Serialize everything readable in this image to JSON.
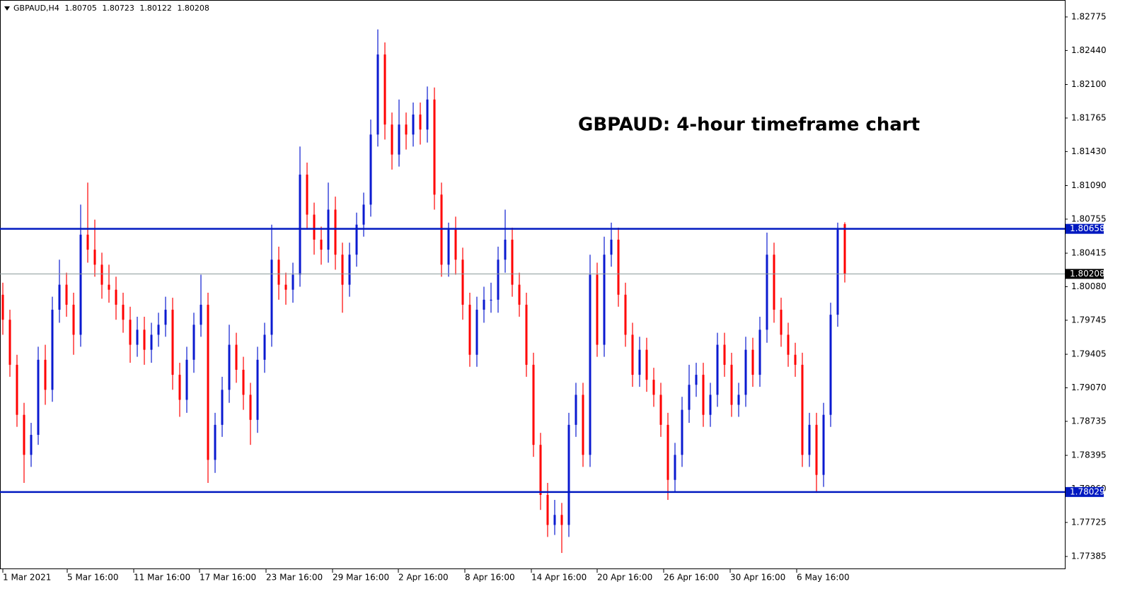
{
  "chart_data": {
    "type": "candlestick",
    "symbol": "GBPAUD,H4",
    "title": "GBPAUD: 4-hour timeframe chart",
    "up_color": "#0a1ad0",
    "down_color": "#ff0000",
    "level_color": "#0019c0",
    "levels": [
      1.80658,
      1.78029
    ],
    "ylim": [
      1.77258,
      1.82916
    ],
    "yticks": [
      1.82775,
      {
        "value": 1.8244,
        "label": "1.82440"
      },
      {
        "value": 1.821,
        "label": "1.82100"
      },
      1.81765,
      {
        "value": 1.8143,
        "label": "1.81430"
      },
      {
        "value": 1.8109,
        "label": "1.81090"
      },
      1.80755,
      1.80415,
      {
        "value": 1.8008,
        "label": "1.80080"
      },
      1.79745,
      1.79405,
      {
        "value": 1.7907,
        "label": "1.79070"
      },
      1.78735,
      1.78395,
      {
        "value": 1.7806,
        "label": "1.78060"
      },
      1.77725,
      1.77385
    ],
    "xticks": [
      {
        "value": 0,
        "label": "1 Mar 2021"
      },
      {
        "value": 9.1,
        "label": "5 Mar 16:00"
      },
      {
        "value": 18.5,
        "label": "11 Mar 16:00"
      },
      {
        "value": 27.8,
        "label": "17 Mar 16:00"
      },
      {
        "value": 37.2,
        "label": "23 Mar 16:00"
      },
      {
        "value": 46.6,
        "label": "29 Mar 16:00"
      },
      {
        "value": 55.9,
        "label": "2 Apr 16:00"
      },
      {
        "value": 65.3,
        "label": "8 Apr 16:00"
      },
      {
        "value": 74.7,
        "label": "14 Apr 16:00"
      },
      {
        "value": 84,
        "label": "20 Apr 16:00"
      },
      {
        "value": 93.4,
        "label": "26 Apr 16:00"
      },
      {
        "value": 102.8,
        "label": "30 Apr 16:00"
      },
      {
        "value": 112.2,
        "label": "6 May 16:00"
      }
    ],
    "ohlc": [
      [
        1.8,
        1.8012,
        1.796,
        1.7975
      ],
      [
        1.7975,
        1.7985,
        1.7918,
        1.793
      ],
      [
        1.793,
        1.794,
        1.7868,
        1.788
      ],
      [
        1.788,
        1.7892,
        1.7812,
        1.784
      ],
      [
        1.784,
        1.7872,
        1.7828,
        1.786
      ],
      [
        1.786,
        1.7948,
        1.785,
        1.7935
      ],
      [
        1.7935,
        1.795,
        1.789,
        1.7905
      ],
      [
        1.7905,
        1.7998,
        1.7893,
        1.7985
      ],
      [
        1.7985,
        1.8035,
        1.7972,
        1.801
      ],
      [
        1.801,
        1.8022,
        1.7978,
        1.799
      ],
      [
        1.799,
        1.8002,
        1.794,
        1.796
      ],
      [
        1.796,
        1.809,
        1.7948,
        1.806
      ],
      [
        1.806,
        1.8112,
        1.8032,
        1.8045
      ],
      [
        1.8045,
        1.8075,
        1.8018,
        1.803
      ],
      [
        1.803,
        1.8042,
        1.7996,
        1.801
      ],
      [
        1.801,
        1.803,
        1.7992,
        1.8005
      ],
      [
        1.8005,
        1.8018,
        1.7975,
        1.799
      ],
      [
        1.799,
        1.8002,
        1.7962,
        1.7975
      ],
      [
        1.7975,
        1.7988,
        1.7932,
        1.795
      ],
      [
        1.795,
        1.7978,
        1.7938,
        1.7965
      ],
      [
        1.7965,
        1.7978,
        1.793,
        1.7945
      ],
      [
        1.7945,
        1.7972,
        1.7932,
        1.796
      ],
      [
        1.796,
        1.7982,
        1.7948,
        1.797
      ],
      [
        1.797,
        1.7998,
        1.7958,
        1.7985
      ],
      [
        1.7985,
        1.7997,
        1.7905,
        1.792
      ],
      [
        1.792,
        1.7932,
        1.7878,
        1.7895
      ],
      [
        1.7895,
        1.7948,
        1.7882,
        1.7935
      ],
      [
        1.7935,
        1.7982,
        1.7922,
        1.797
      ],
      [
        1.797,
        1.802,
        1.7958,
        1.799
      ],
      [
        1.799,
        1.8002,
        1.7812,
        1.7835
      ],
      [
        1.7835,
        1.7882,
        1.7822,
        1.787
      ],
      [
        1.787,
        1.7918,
        1.7858,
        1.7905
      ],
      [
        1.7905,
        1.797,
        1.7892,
        1.795
      ],
      [
        1.795,
        1.7962,
        1.7912,
        1.7925
      ],
      [
        1.7925,
        1.7938,
        1.7885,
        1.79
      ],
      [
        1.79,
        1.7912,
        1.785,
        1.7875
      ],
      [
        1.7875,
        1.7948,
        1.7862,
        1.7935
      ],
      [
        1.7935,
        1.7972,
        1.7922,
        1.796
      ],
      [
        1.796,
        1.807,
        1.7948,
        1.8035
      ],
      [
        1.8035,
        1.8048,
        1.7995,
        1.801
      ],
      [
        1.801,
        1.8022,
        1.799,
        1.8005
      ],
      [
        1.8005,
        1.8032,
        1.7992,
        1.802
      ],
      [
        1.802,
        1.8148,
        1.8008,
        1.812
      ],
      [
        1.812,
        1.8132,
        1.8065,
        1.808
      ],
      [
        1.808,
        1.8092,
        1.804,
        1.8055
      ],
      [
        1.8055,
        1.8068,
        1.803,
        1.8045
      ],
      [
        1.8045,
        1.8112,
        1.8032,
        1.8085
      ],
      [
        1.8085,
        1.8098,
        1.8025,
        1.804
      ],
      [
        1.804,
        1.8052,
        1.7982,
        1.801
      ],
      [
        1.801,
        1.8052,
        1.7998,
        1.804
      ],
      [
        1.804,
        1.8082,
        1.8028,
        1.807
      ],
      [
        1.807,
        1.8102,
        1.8058,
        1.809
      ],
      [
        1.809,
        1.8175,
        1.8078,
        1.816
      ],
      [
        1.816,
        1.8265,
        1.8148,
        1.824
      ],
      [
        1.824,
        1.8252,
        1.8155,
        1.817
      ],
      [
        1.817,
        1.8182,
        1.8125,
        1.814
      ],
      [
        1.814,
        1.8195,
        1.8128,
        1.817
      ],
      [
        1.817,
        1.8182,
        1.8145,
        1.816
      ],
      [
        1.816,
        1.8192,
        1.8148,
        1.818
      ],
      [
        1.818,
        1.8192,
        1.815,
        1.8165
      ],
      [
        1.8165,
        1.8208,
        1.8152,
        1.8195
      ],
      [
        1.8195,
        1.8207,
        1.8085,
        1.81
      ],
      [
        1.81,
        1.8112,
        1.8018,
        1.803
      ],
      [
        1.803,
        1.8072,
        1.8018,
        1.8065
      ],
      [
        1.8065,
        1.8078,
        1.802,
        1.8035
      ],
      [
        1.8035,
        1.8047,
        1.7975,
        1.799
      ],
      [
        1.799,
        1.8002,
        1.7928,
        1.794
      ],
      [
        1.794,
        1.7998,
        1.7928,
        1.7985
      ],
      [
        1.7985,
        1.8008,
        1.7972,
        1.7995
      ],
      [
        1.7995,
        1.8012,
        1.7982,
        1.7995
      ],
      [
        1.7995,
        1.8048,
        1.7982,
        1.8035
      ],
      [
        1.8035,
        1.8085,
        1.8022,
        1.8055
      ],
      [
        1.8055,
        1.8067,
        1.7998,
        1.801
      ],
      [
        1.801,
        1.8022,
        1.7978,
        1.799
      ],
      [
        1.799,
        1.8002,
        1.7918,
        1.793
      ],
      [
        1.793,
        1.7942,
        1.7838,
        1.785
      ],
      [
        1.785,
        1.7862,
        1.7785,
        1.78
      ],
      [
        1.78,
        1.7812,
        1.7758,
        1.777
      ],
      [
        1.777,
        1.7795,
        1.776,
        1.778
      ],
      [
        1.778,
        1.7792,
        1.7742,
        1.777
      ],
      [
        1.777,
        1.7882,
        1.7758,
        1.787
      ],
      [
        1.787,
        1.7912,
        1.7858,
        1.79
      ],
      [
        1.79,
        1.7912,
        1.7828,
        1.784
      ],
      [
        1.784,
        1.804,
        1.7828,
        1.802
      ],
      [
        1.802,
        1.8032,
        1.7938,
        1.795
      ],
      [
        1.795,
        1.8058,
        1.7938,
        1.804
      ],
      [
        1.804,
        1.8072,
        1.8028,
        1.8055
      ],
      [
        1.8055,
        1.8067,
        1.7988,
        1.8
      ],
      [
        1.8,
        1.8012,
        1.7948,
        1.796
      ],
      [
        1.796,
        1.7972,
        1.7908,
        1.792
      ],
      [
        1.792,
        1.7958,
        1.7908,
        1.7945
      ],
      [
        1.7945,
        1.7957,
        1.7903,
        1.7915
      ],
      [
        1.7915,
        1.7927,
        1.7888,
        1.79
      ],
      [
        1.79,
        1.7912,
        1.7858,
        1.787
      ],
      [
        1.787,
        1.7882,
        1.7795,
        1.7815
      ],
      [
        1.7815,
        1.7852,
        1.7803,
        1.784
      ],
      [
        1.784,
        1.7898,
        1.7828,
        1.7885
      ],
      [
        1.7885,
        1.793,
        1.7872,
        1.791
      ],
      [
        1.791,
        1.7932,
        1.7898,
        1.792
      ],
      [
        1.792,
        1.7932,
        1.7868,
        1.788
      ],
      [
        1.788,
        1.7912,
        1.7868,
        1.79
      ],
      [
        1.79,
        1.7962,
        1.7888,
        1.795
      ],
      [
        1.795,
        1.7962,
        1.7918,
        1.793
      ],
      [
        1.793,
        1.7942,
        1.7878,
        1.789
      ],
      [
        1.789,
        1.7912,
        1.7878,
        1.79
      ],
      [
        1.79,
        1.7958,
        1.7888,
        1.7945
      ],
      [
        1.7945,
        1.7957,
        1.7908,
        1.792
      ],
      [
        1.792,
        1.7978,
        1.7908,
        1.7965
      ],
      [
        1.7965,
        1.8062,
        1.7952,
        1.804
      ],
      [
        1.804,
        1.8052,
        1.7972,
        1.7985
      ],
      [
        1.7985,
        1.7997,
        1.7948,
        1.796
      ],
      [
        1.796,
        1.7972,
        1.7928,
        1.794
      ],
      [
        1.794,
        1.7952,
        1.7918,
        1.793
      ],
      [
        1.793,
        1.7942,
        1.7828,
        1.784
      ],
      [
        1.784,
        1.7882,
        1.7828,
        1.787
      ],
      [
        1.787,
        1.7882,
        1.7802,
        1.782
      ],
      [
        1.782,
        1.7892,
        1.7808,
        1.788
      ],
      [
        1.788,
        1.7992,
        1.7868,
        1.798
      ],
      [
        1.798,
        1.8072,
        1.7968,
        1.8065
      ],
      [
        1.80705,
        1.80723,
        1.80122,
        1.80208
      ]
    ]
  }
}
